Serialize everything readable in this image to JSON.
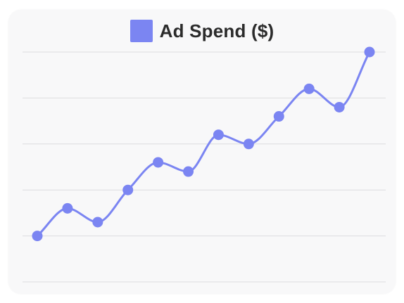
{
  "chart_data": {
    "type": "line",
    "title": "",
    "xlabel": "",
    "ylabel": "",
    "legend": {
      "position": "top-center"
    },
    "grid": {
      "horizontal": true,
      "vertical": false
    },
    "tick_labels_visible": false,
    "series": [
      {
        "name": "Ad Spend ($)",
        "color": "#7b85f2",
        "x": [
          1,
          2,
          3,
          4,
          5,
          6,
          7,
          8,
          9,
          10,
          11,
          12
        ],
        "values": [
          1.0,
          1.6,
          1.3,
          2.0,
          2.6,
          2.4,
          3.2,
          3.0,
          3.6,
          4.2,
          3.8,
          5.0
        ]
      }
    ],
    "ylim": [
      0.0,
      5.0
    ]
  }
}
